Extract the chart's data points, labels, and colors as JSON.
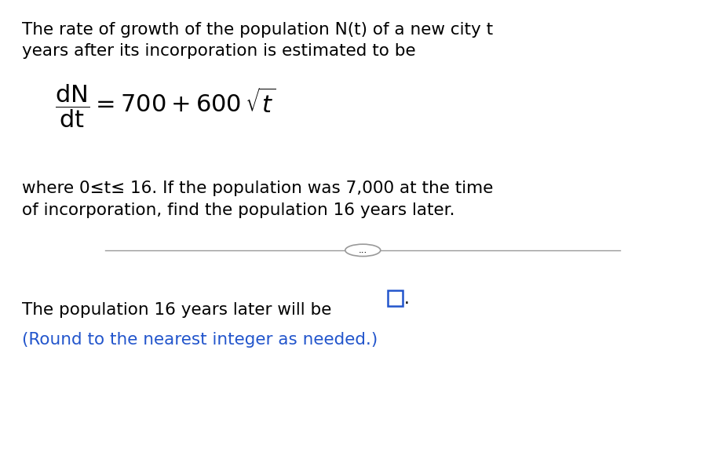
{
  "bg_color": "#ffffff",
  "text_color": "#000000",
  "blue_color": "#2255cc",
  "line_color": "#999999",
  "para1_line1": "The rate of growth of the population N(t) of a new city t",
  "para1_line2": "years after its incorporation is estimated to be",
  "para2_line1": "where 0≤t≤ 16. If the population was 7,000 at the time",
  "para2_line2": "of incorporation, find the population 16 years later.",
  "bottom_line1": "The population 16 years later will be",
  "bottom_line2": "(Round to the nearest integer as needed.)",
  "dots": "...",
  "font_size_main": 15.5,
  "font_size_formula": 18
}
